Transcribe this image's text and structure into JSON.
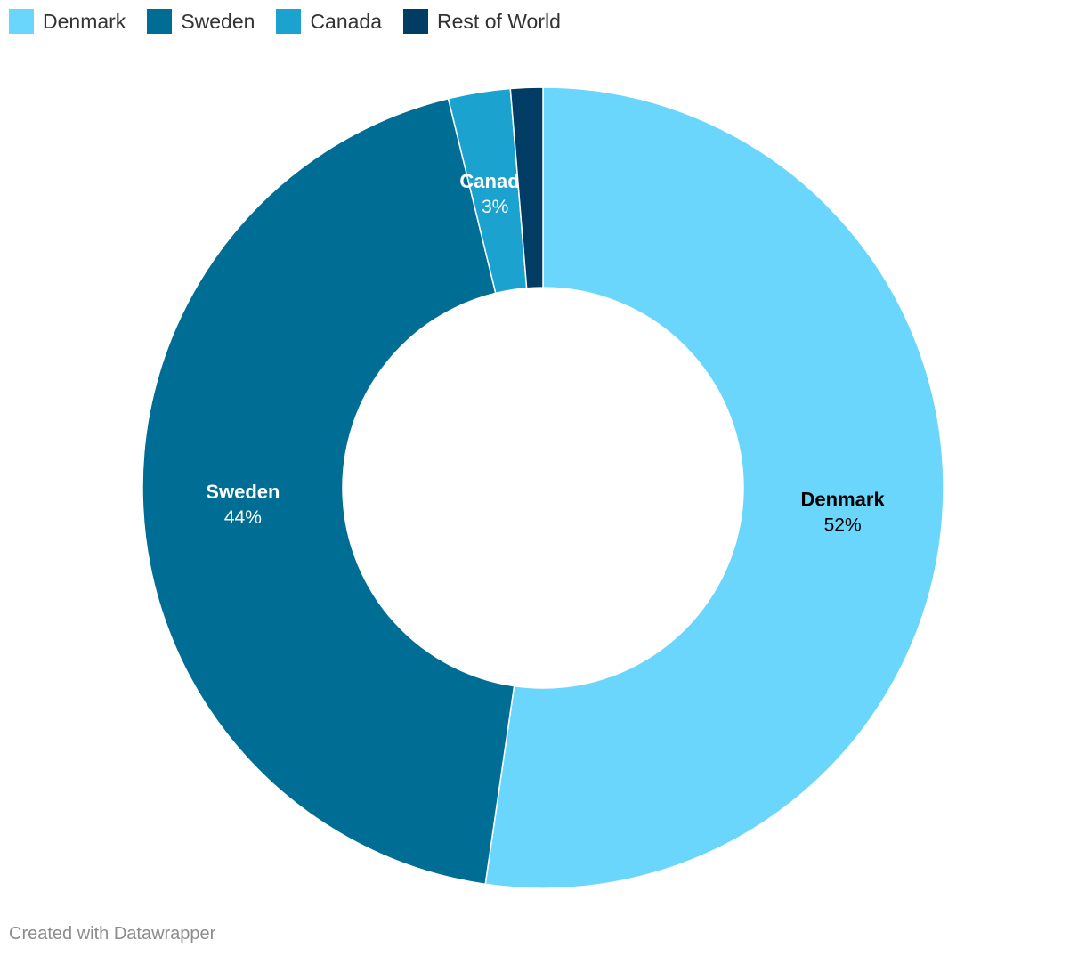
{
  "chart_data": {
    "type": "pie",
    "variant": "donut",
    "categories": [
      "Denmark",
      "Sweden",
      "Canada",
      "Rest of World"
    ],
    "values": [
      52.3,
      43.9,
      2.5,
      1.3
    ],
    "value_labels": [
      "52%",
      "44%",
      "3%",
      ""
    ],
    "colors": [
      "#6ad6fc",
      "#006d95",
      "#1ca2cf",
      "#003c64"
    ],
    "label_colors": [
      "#000000",
      "#ffffff",
      "#ffffff",
      "#ffffff"
    ],
    "legend_position": "top-left",
    "start_angle": "12 o'clock",
    "direction": "clockwise"
  },
  "legend": {
    "items": [
      {
        "label": "Denmark",
        "color": "#6ad6fc"
      },
      {
        "label": "Sweden",
        "color": "#006d95"
      },
      {
        "label": "Canada",
        "color": "#1ca2cf"
      },
      {
        "label": "Rest of World",
        "color": "#003c64"
      }
    ]
  },
  "footer": {
    "credit": "Created with Datawrapper"
  }
}
